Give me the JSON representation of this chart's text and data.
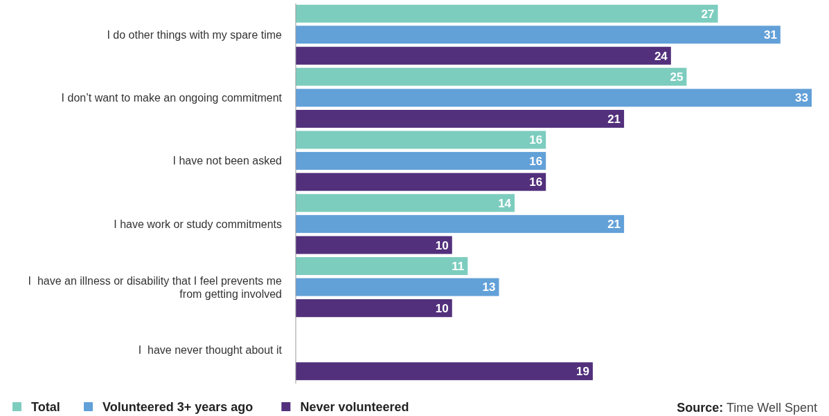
{
  "chart_data": {
    "type": "bar",
    "orientation": "horizontal",
    "categories": [
      "I do other things with my spare time",
      "I don’t want to make an ongoing commitment",
      "I have not been asked",
      "I have work or study commitments",
      "I  have an illness or disability that I feel prevents me from getting involved",
      "I  have never thought about it"
    ],
    "series": [
      {
        "name": "Total",
        "color": "#7dcdbf",
        "values": [
          27,
          25,
          16,
          14,
          11,
          null
        ]
      },
      {
        "name": "Volunteered 3+ years ago",
        "color": "#62a0d8",
        "values": [
          31,
          33,
          16,
          21,
          13,
          null
        ]
      },
      {
        "name": "Never volunteered",
        "color": "#52307c",
        "values": [
          24,
          21,
          16,
          10,
          10,
          19
        ]
      }
    ],
    "data_labels": true,
    "legend": "bottom",
    "annotations": [
      "Source: Time Well Spent"
    ]
  }
}
